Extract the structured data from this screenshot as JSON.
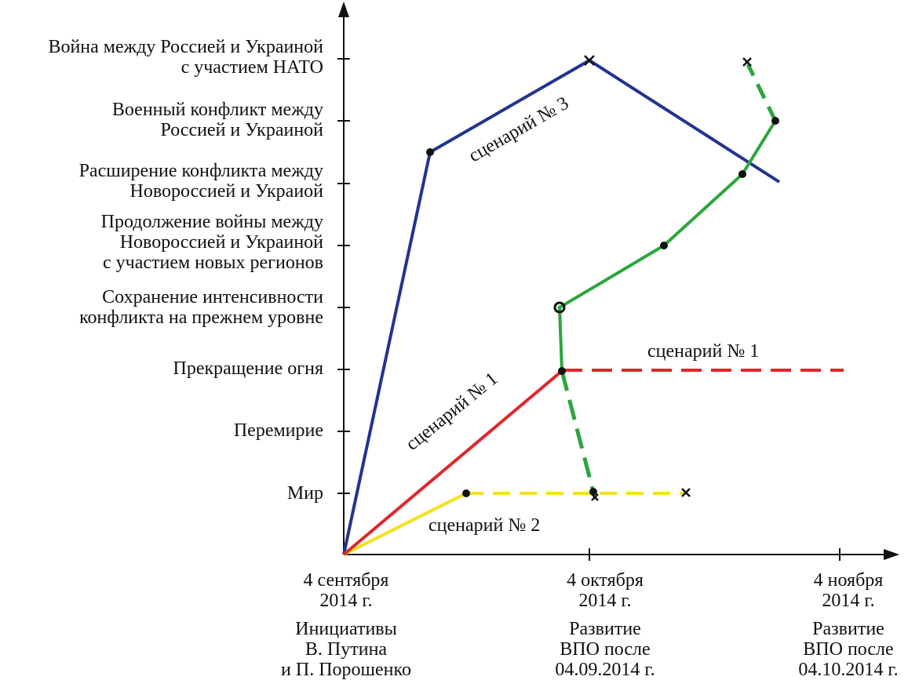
{
  "y_levels": [
    {
      "key": "mir",
      "lines": [
        "Мир"
      ]
    },
    {
      "key": "peremirie",
      "lines": [
        "Перемирие"
      ]
    },
    {
      "key": "ceasefire",
      "lines": [
        "Прекращение огня"
      ]
    },
    {
      "key": "same",
      "lines": [
        "Сохранение интенсивности",
        "конфликта на прежнем уровне"
      ]
    },
    {
      "key": "continuation",
      "lines": [
        "Продолжение войны между",
        "Новороссией и Украиной",
        "с участием новых регионов"
      ]
    },
    {
      "key": "expansion",
      "lines": [
        "Расширение конфликта между",
        "Новороссией и Украиой"
      ]
    },
    {
      "key": "military",
      "lines": [
        "Военный конфликт между",
        "Россией и Украиной"
      ]
    },
    {
      "key": "war_nato",
      "lines": [
        "Война между Россией и Украиной",
        "с участием НАТО"
      ]
    }
  ],
  "x_ticks": [
    {
      "date": [
        "4 сентября",
        "2014 г."
      ],
      "caption": [
        "Инициативы",
        "В. Путина",
        "и П. Порошенко"
      ]
    },
    {
      "date": [
        "4 октября",
        "2014 г."
      ],
      "caption": [
        "Развитие",
        "ВПО после",
        "04.09.2014 г."
      ]
    },
    {
      "date": [
        "4 ноября",
        "2014 г."
      ],
      "caption": [
        "Развитие",
        "ВПО после",
        "04.10.2014 г."
      ]
    }
  ],
  "scenario_labels": {
    "s3": "сценарий № 3",
    "s1_diag": "сценарий № 1",
    "s1_flat": "сценарий № 1",
    "s2": "сценарий № 2"
  },
  "colors": {
    "blue": "#22348f",
    "red": "#e0262b",
    "green": "#2ba63c",
    "yellow": "#f2e21c",
    "axis": "#111111"
  }
}
